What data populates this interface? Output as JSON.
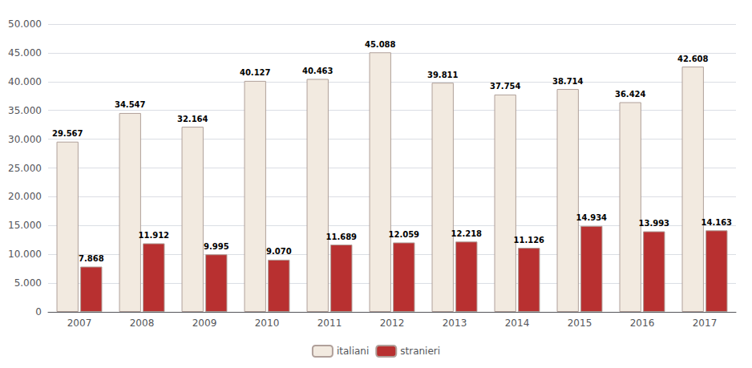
{
  "chart_data": {
    "type": "bar",
    "categories": [
      "2007",
      "2008",
      "2009",
      "2010",
      "2011",
      "2012",
      "2013",
      "2014",
      "2015",
      "2016",
      "2017"
    ],
    "series": [
      {
        "name": "italiani",
        "color": "#F2EAE0",
        "values": [
          29567,
          34547,
          32164,
          40127,
          40463,
          45088,
          39811,
          37754,
          38714,
          36424,
          42608
        ],
        "value_labels": [
          "29.567",
          "34.547",
          "32.164",
          "40.127",
          "40.463",
          "45.088",
          "39.811",
          "37.754",
          "38.714",
          "36.424",
          "42.608"
        ]
      },
      {
        "name": "stranieri",
        "color": "#B83030",
        "values": [
          7868,
          11912,
          9995,
          9070,
          11689,
          12059,
          12218,
          11126,
          14934,
          13993,
          14163
        ],
        "value_labels": [
          "7.868",
          "11.912",
          "9.995",
          "9.070",
          "11.689",
          "12.059",
          "12.218",
          "11.126",
          "14.934",
          "13.993",
          "14.163"
        ]
      }
    ],
    "ylim": [
      0,
      50000
    ],
    "yticks": [
      0,
      {
        "value": 5000,
        "label": "5.000"
      },
      {
        "value": 10000,
        "label": "10.000"
      },
      {
        "value": 15000,
        "label": "15.000"
      },
      {
        "value": 20000,
        "label": "20.000"
      },
      {
        "value": 25000,
        "label": "25.000"
      },
      {
        "value": 30000,
        "label": "30.000"
      },
      {
        "value": 35000,
        "label": "35.000"
      },
      {
        "value": 40000,
        "label": "40.000"
      },
      {
        "value": 45000,
        "label": "45.000"
      },
      {
        "value": 50000,
        "label": "50.000"
      }
    ],
    "grid": true,
    "legend": "bottom",
    "data_labels": true
  }
}
